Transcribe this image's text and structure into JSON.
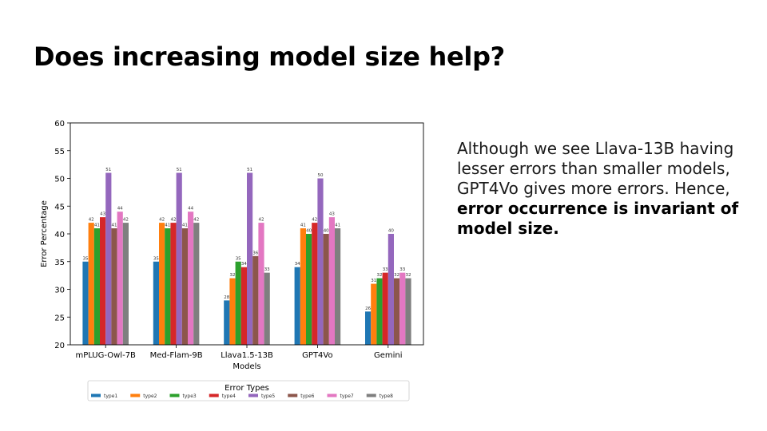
{
  "slide": {
    "title": "Does increasing model size help?",
    "body_intro": "Although we see Llava-13B having lesser errors than smaller models, GPT4Vo gives more errors. Hence, ",
    "body_bold": "error occurrence is invariant of model size."
  },
  "chart_data": {
    "type": "bar",
    "title": "",
    "xlabel": "Models",
    "ylabel": "Error Percentage",
    "ylim": [
      20,
      60
    ],
    "yticks": [
      20,
      25,
      30,
      35,
      40,
      45,
      50,
      55,
      60
    ],
    "categories": [
      "mPLUG-Owl-7B",
      "Med-Flam-9B",
      "Llava1.5-13B",
      "GPT4Vo",
      "Gemini"
    ],
    "legend_title": "Error Types",
    "legend_position": "bottom",
    "series": [
      {
        "name": "type1",
        "color": "#1f77b4",
        "values": [
          35,
          35,
          28,
          34,
          26
        ]
      },
      {
        "name": "type2",
        "color": "#ff7f0e",
        "values": [
          42,
          42,
          32,
          41,
          31
        ]
      },
      {
        "name": "type3",
        "color": "#2ca02c",
        "values": [
          41,
          41,
          35,
          40,
          32
        ]
      },
      {
        "name": "type4",
        "color": "#d62728",
        "values": [
          43,
          42,
          34,
          42,
          33
        ]
      },
      {
        "name": "type5",
        "color": "#9467bd",
        "values": [
          51,
          51,
          51,
          50,
          40
        ]
      },
      {
        "name": "type6",
        "color": "#8c564b",
        "values": [
          41,
          41,
          36,
          40,
          32
        ]
      },
      {
        "name": "type7",
        "color": "#e377c2",
        "values": [
          44,
          44,
          42,
          43,
          33
        ]
      },
      {
        "name": "type8",
        "color": "#7f7f7f",
        "values": [
          42,
          42,
          33,
          41,
          32
        ]
      }
    ]
  }
}
